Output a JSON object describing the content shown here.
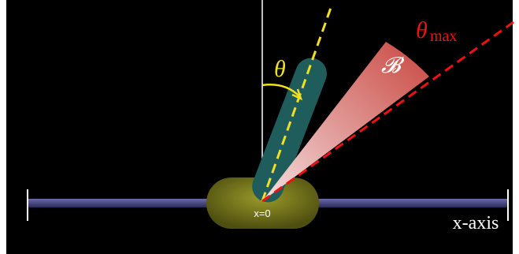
{
  "labels": {
    "theta_max": {
      "symbol": "θ",
      "subscript": "max"
    },
    "set": "𝓑",
    "theta": "θ",
    "origin": "x=0",
    "axis": "x-axis"
  }
}
